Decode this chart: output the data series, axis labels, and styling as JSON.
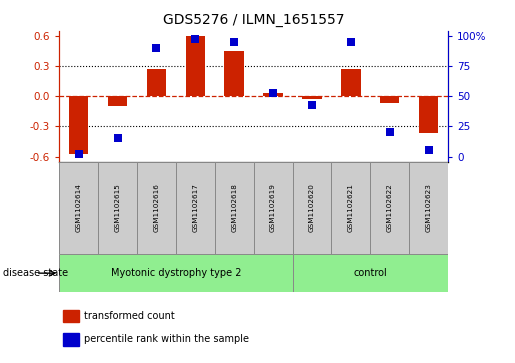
{
  "title": "GDS5276 / ILMN_1651557",
  "samples": [
    "GSM1102614",
    "GSM1102615",
    "GSM1102616",
    "GSM1102617",
    "GSM1102618",
    "GSM1102619",
    "GSM1102620",
    "GSM1102621",
    "GSM1102622",
    "GSM1102623"
  ],
  "red_values": [
    -0.58,
    -0.1,
    0.27,
    0.6,
    0.45,
    0.03,
    -0.03,
    0.27,
    -0.07,
    -0.37
  ],
  "blue_values_pct": [
    2,
    15,
    90,
    97,
    95,
    53,
    43,
    95,
    20,
    5
  ],
  "ylim": [
    -0.65,
    0.65
  ],
  "yticks_left": [
    -0.6,
    -0.3,
    0.0,
    0.3,
    0.6
  ],
  "yticks_right": [
    0,
    25,
    50,
    75,
    100
  ],
  "disease_groups": [
    {
      "label": "Myotonic dystrophy type 2",
      "start": 0,
      "end": 6,
      "color": "#90ee90"
    },
    {
      "label": "control",
      "start": 6,
      "end": 10,
      "color": "#90ee90"
    }
  ],
  "disease_state_label": "disease state",
  "legend_red": "transformed count",
  "legend_blue": "percentile rank within the sample",
  "bar_color": "#cc2200",
  "dot_color": "#0000cc",
  "zero_line_color": "#cc2200",
  "grid_color": "#000000",
  "ax_bg": "#ffffff",
  "label_box_color": "#cccccc",
  "left_axis_color": "#cc2200",
  "right_axis_color": "#0000cc",
  "figsize": [
    5.15,
    3.63
  ],
  "dpi": 100
}
